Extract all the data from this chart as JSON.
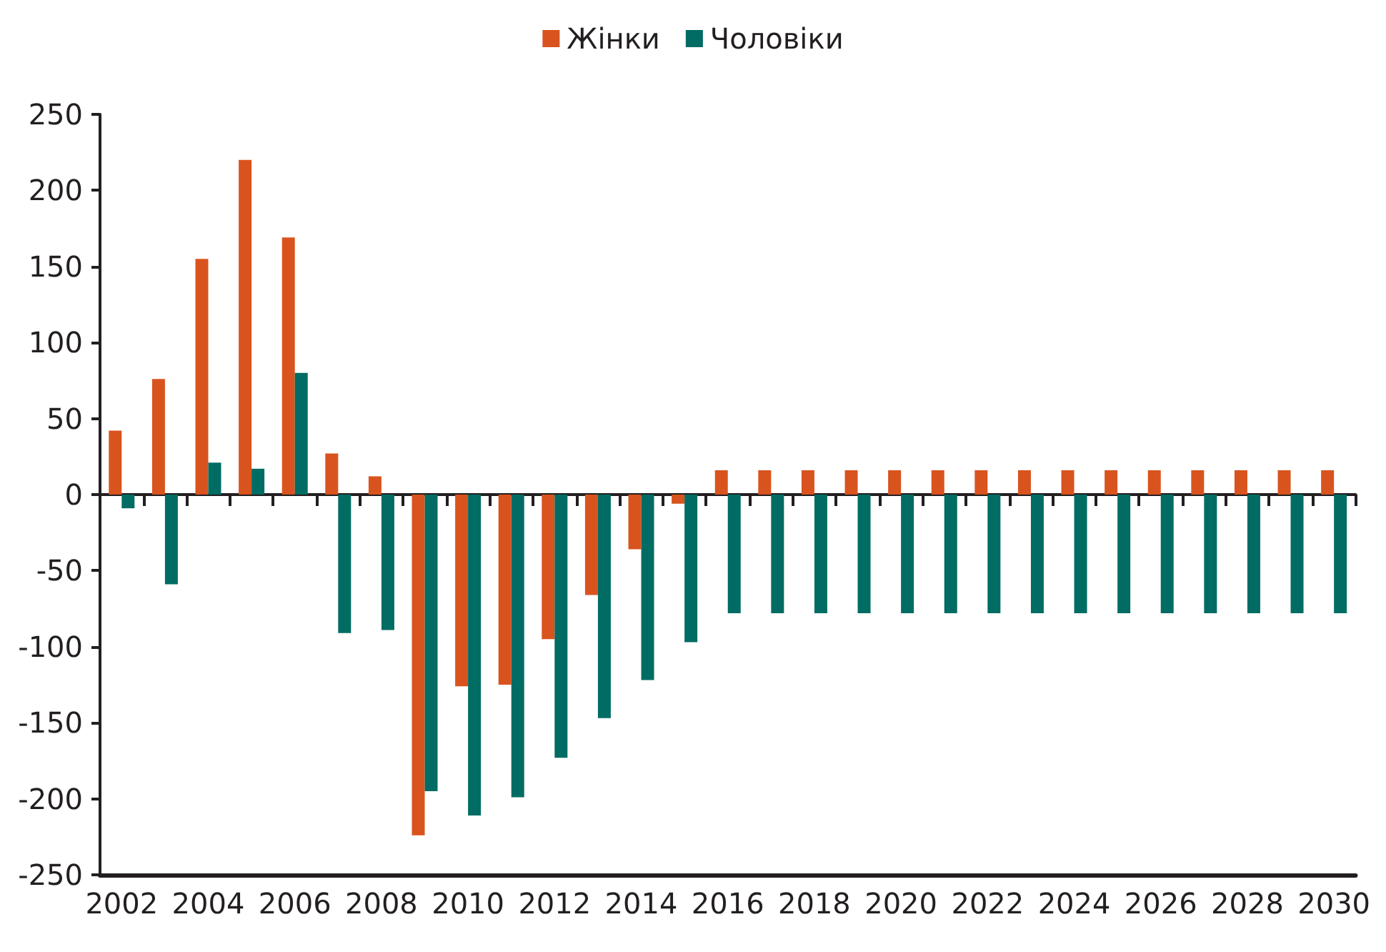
{
  "chart_data": {
    "type": "bar",
    "categories": [
      "2002",
      null,
      "2004",
      null,
      "2006",
      null,
      "2008",
      null,
      "2010",
      null,
      "2012",
      null,
      "2014",
      null,
      "2016",
      null,
      "2018",
      null,
      "2020",
      null,
      "2022",
      null,
      "2024",
      null,
      "2026",
      null,
      "2028",
      null,
      "2030"
    ],
    "series": [
      {
        "name": "Жінки",
        "color": "#d9531e",
        "values": [
          42,
          76,
          155,
          220,
          169,
          27,
          12,
          -224,
          -126,
          -125,
          -95,
          -66,
          -36,
          -6,
          16,
          16,
          16,
          16,
          16,
          16,
          16,
          16,
          16,
          16,
          16,
          16,
          16,
          16,
          16
        ]
      },
      {
        "name": "Чоловіки",
        "color": "#006c63",
        "values": [
          -9,
          -59,
          21,
          17,
          80,
          -91,
          -89,
          -195,
          -211,
          -199,
          -173,
          -147,
          -122,
          -97,
          -78,
          -78,
          -78,
          -78,
          -78,
          -78,
          -78,
          -78,
          -78,
          -78,
          -78,
          -78,
          -78,
          -78,
          -78
        ]
      }
    ],
    "ylim": [
      -250,
      250
    ],
    "yticks": [
      -250,
      -200,
      -150,
      -100,
      -50,
      0,
      50,
      100,
      150,
      200,
      250
    ],
    "legend": "top"
  }
}
